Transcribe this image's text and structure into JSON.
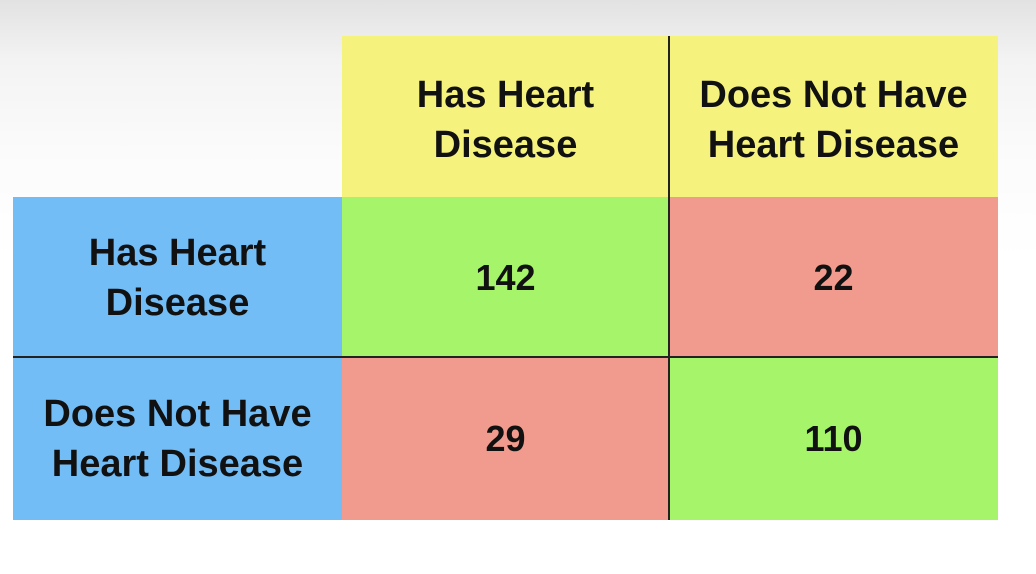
{
  "columns": [
    {
      "label": "Has Heart\nDisease"
    },
    {
      "label": "Does Not Have\nHeart Disease"
    }
  ],
  "rows": [
    {
      "label": "Has Heart\nDisease",
      "values": [
        "142",
        "22"
      ]
    },
    {
      "label": "Does Not Have\nHeart Disease",
      "values": [
        "29",
        "110"
      ]
    }
  ],
  "colors": {
    "column_header": "#f5f27e",
    "row_header": "#73bdf6",
    "correct": "#a6f46a",
    "incorrect": "#f09b8d"
  }
}
